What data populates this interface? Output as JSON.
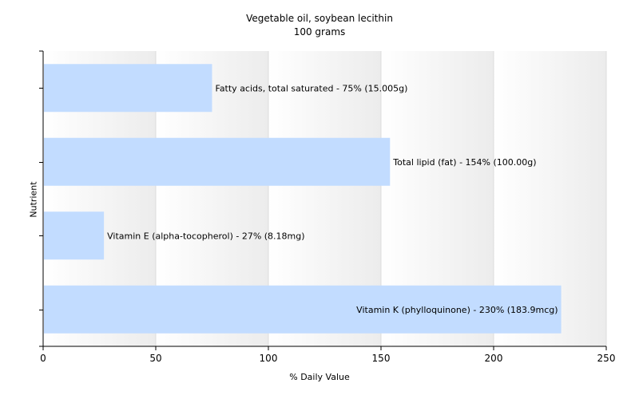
{
  "chart_data": {
    "type": "bar",
    "orientation": "horizontal",
    "title": "Vegetable oil, soybean lecithin",
    "subtitle": "100 grams",
    "xlabel": "% Daily Value",
    "ylabel": "Nutrient",
    "xlim": [
      0,
      250
    ],
    "xticks": [
      0,
      50,
      100,
      150,
      200,
      250
    ],
    "grid": true,
    "bar_color": "#c2dcff",
    "categories": [
      "Fatty acids, total saturated",
      "Total lipid (fat)",
      "Vitamin E (alpha-tocopherol)",
      "Vitamin K (phylloquinone)"
    ],
    "values": [
      75,
      154,
      27,
      230
    ],
    "data_labels": [
      "Fatty acids, total saturated - 75% (15.005g)",
      "Total lipid (fat) - 154% (100.00g)",
      "Vitamin E (alpha-tocopherol) - 27% (8.18mg)",
      "Vitamin K (phylloquinone) - 230% (183.9mcg)"
    ]
  }
}
